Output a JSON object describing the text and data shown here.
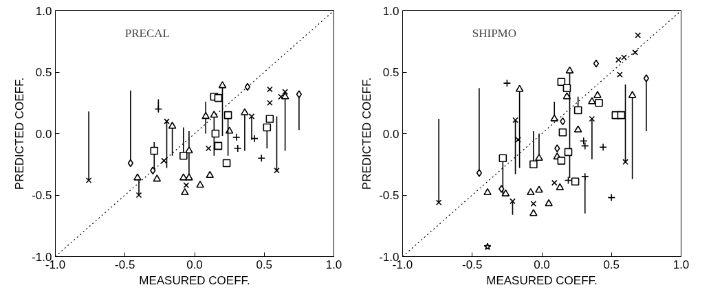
{
  "chart_data": [
    {
      "type": "scatter",
      "title": "PRECAL",
      "xlabel": "MEASURED COEFF.",
      "ylabel": "PREDICTED COEFF.",
      "xlim": [
        -1.0,
        1.0
      ],
      "ylim": [
        -1.0,
        1.0
      ],
      "xticks": [
        {
          "value": -1,
          "label": "-1.0"
        },
        {
          "value": -0.5,
          "label": "-0.5"
        },
        {
          "value": 0,
          "label": "0.0"
        },
        {
          "value": 0.5,
          "label": "0.5"
        },
        {
          "value": 1,
          "label": "1.0"
        }
      ],
      "yticks": [
        {
          "value": -1,
          "label": "-1.0"
        },
        {
          "value": -0.5,
          "label": "-0.5"
        },
        {
          "value": 0,
          "label": "0.0"
        },
        {
          "value": 0.5,
          "label": "0.5"
        },
        {
          "value": 1,
          "label": "1.0"
        }
      ],
      "grid": false,
      "series": [
        {
          "type": "line",
          "x": [
            -1,
            1
          ],
          "values": [
            -1,
            1
          ],
          "color": "#000000",
          "line_style": "dotted"
        },
        {
          "marker": "x",
          "color": "#000000",
          "x": [
            -0.76,
            -0.4,
            -0.22,
            -0.2,
            -0.06,
            0.1,
            0.41,
            0.54,
            0.54,
            0.59,
            0.65,
            0.62
          ],
          "values": [
            -0.38,
            -0.5,
            -0.22,
            0.1,
            -0.42,
            -0.12,
            0.14,
            0.36,
            0.25,
            -0.3,
            0.34,
            0.3
          ],
          "errors": [
            [
              -0.38,
              0.18
            ],
            [
              -0.5,
              -0.38
            ],
            null,
            [
              -0.28,
              0.1
            ],
            null,
            null,
            [
              -0.05,
              0.14
            ],
            null,
            null,
            [
              -0.3,
              0.14
            ],
            [
              -0.14,
              0.34
            ],
            null
          ]
        },
        {
          "marker": "triangle",
          "color": "#000000",
          "x": [
            -0.41,
            -0.16,
            0.2,
            0.14,
            0.36,
            0.65
          ],
          "values": [
            -0.36,
            0.06,
            0.39,
            0.15,
            0.17,
            0.3
          ],
          "errors": [
            null,
            [
              -0.18,
              0.06
            ],
            [
              -0.02,
              0.39
            ],
            [
              -0.18,
              0.15
            ],
            [
              -0.14,
              0.17
            ],
            null
          ]
        },
        {
          "marker": "triangle",
          "color": "#000000",
          "x": [
            -0.27,
            -0.08,
            -0.07,
            -0.04,
            -0.04,
            0.04,
            0.11,
            0.08,
            0.25
          ],
          "values": [
            -0.37,
            -0.36,
            -0.48,
            -0.14,
            -0.36,
            -0.42,
            -0.34,
            0.14,
            0.02
          ],
          "errors": [
            null,
            null,
            null,
            [
              -0.36,
              0.02
            ],
            null,
            null,
            null,
            [
              0.0,
              0.26
            ],
            null
          ]
        },
        {
          "marker": "square",
          "color": "#000000",
          "x": [
            -0.29,
            -0.08,
            0.14,
            0.17,
            0.15,
            0.17,
            0.24,
            0.23,
            0.52,
            0.54
          ],
          "values": [
            -0.14,
            -0.18,
            0.3,
            0.29,
            0.0,
            -0.1,
            0.15,
            -0.24,
            0.05,
            0.12
          ],
          "errors": [
            [
              -0.3,
              -0.07
            ],
            [
              -0.18,
              0.05
            ],
            null,
            null,
            null,
            null,
            [
              -0.18,
              0.15
            ],
            null,
            [
              -0.12,
              0.05
            ],
            null
          ]
        },
        {
          "marker": "diamond",
          "color": "#000000",
          "x": [
            -0.46,
            -0.3,
            0.38,
            0.75
          ],
          "values": [
            -0.24,
            -0.3,
            0.38,
            0.32
          ],
          "errors": [
            [
              -0.24,
              0.35
            ],
            null,
            null,
            [
              0.03,
              0.32
            ]
          ]
        },
        {
          "marker": "cross",
          "color": "#000000",
          "x": [
            -0.26,
            0.3,
            0.31,
            0.43,
            0.48
          ],
          "values": [
            0.2,
            -0.03,
            -0.12,
            -0.04,
            -0.2
          ],
          "errors": [
            [
              0.2,
              0.28
            ],
            null,
            null,
            null,
            null
          ]
        }
      ]
    },
    {
      "type": "scatter",
      "title": "SHIPMO",
      "xlabel": "MEASURED COEFF.",
      "ylabel": "PREDICTED COEFF.",
      "xlim": [
        -1.0,
        1.0
      ],
      "ylim": [
        -1.0,
        1.0
      ],
      "xticks": [
        {
          "value": -1,
          "label": "-1.0"
        },
        {
          "value": -0.5,
          "label": "-0.5"
        },
        {
          "value": 0,
          "label": "0.0"
        },
        {
          "value": 0.5,
          "label": "0.5"
        },
        {
          "value": 1,
          "label": "1.0"
        }
      ],
      "yticks": [
        {
          "value": -1,
          "label": "-1.0"
        },
        {
          "value": -0.5,
          "label": "-0.5"
        },
        {
          "value": 0,
          "label": "0.0"
        },
        {
          "value": 0.5,
          "label": "0.5"
        },
        {
          "value": 1,
          "label": "1.0"
        }
      ],
      "grid": false,
      "series": [
        {
          "type": "line",
          "x": [
            -1,
            1
          ],
          "values": [
            -1,
            1
          ],
          "color": "#000000",
          "line_style": "dotted"
        },
        {
          "marker": "x",
          "color": "#000000",
          "x": [
            -0.74,
            -0.21,
            -0.19,
            -0.17,
            -0.06,
            0.09,
            0.36,
            0.56,
            0.55,
            0.59,
            0.67,
            0.69,
            0.6
          ],
          "values": [
            -0.56,
            -0.55,
            0.11,
            -0.05,
            -0.57,
            -0.4,
            0.12,
            0.48,
            0.6,
            0.62,
            0.66,
            0.8,
            -0.23
          ],
          "errors": [
            [
              -0.56,
              0.12
            ],
            [
              -0.66,
              -0.55
            ],
            [
              -0.33,
              0.11
            ],
            null,
            null,
            null,
            [
              -0.21,
              0.12
            ],
            null,
            null,
            null,
            null,
            null,
            [
              -0.23,
              0.4
            ]
          ]
        },
        {
          "marker": "star",
          "color": "#000000",
          "x": [
            -0.39
          ],
          "values": [
            -0.92
          ]
        },
        {
          "marker": "triangle",
          "color": "#000000",
          "x": [
            -0.39,
            -0.16,
            0.11,
            0.2,
            0.4,
            0.65
          ],
          "values": [
            -0.48,
            0.36,
            -0.19,
            0.51,
            0.31,
            0.31
          ],
          "errors": [
            null,
            [
              -0.28,
              0.36
            ],
            null,
            [
              -0.36,
              0.51
            ],
            null,
            [
              -0.37,
              0.31
            ]
          ]
        },
        {
          "marker": "triangle",
          "color": "#000000",
          "x": [
            -0.26,
            -0.02,
            -0.08,
            -0.02,
            -0.06,
            0.05,
            0.13,
            0.09,
            0.18,
            0.26,
            0.36
          ],
          "values": [
            -0.49,
            -0.2,
            -0.48,
            -0.46,
            -0.65,
            -0.57,
            -0.44,
            0.12,
            0.3,
            0.03,
            0.26
          ],
          "errors": [
            null,
            [
              -0.2,
              0.0
            ],
            null,
            null,
            null,
            null,
            null,
            [
              0.12,
              0.26
            ],
            null,
            null,
            null
          ]
        },
        {
          "marker": "square",
          "color": "#000000",
          "x": [
            -0.28,
            -0.06,
            0.14,
            0.18,
            0.15,
            0.19,
            0.14,
            0.24,
            0.26,
            0.41,
            0.53,
            0.57
          ],
          "values": [
            -0.2,
            -0.25,
            0.42,
            0.37,
            0.01,
            -0.15,
            -0.22,
            -0.39,
            0.19,
            0.25,
            0.15,
            0.15
          ],
          "errors": [
            [
              -0.5,
              -0.2
            ],
            [
              -0.25,
              0.02
            ],
            null,
            null,
            null,
            null,
            null,
            null,
            [
              0.19,
              0.3
            ],
            null,
            null,
            null
          ]
        },
        {
          "marker": "diamond",
          "color": "#000000",
          "x": [
            -0.45,
            -0.29,
            0.11,
            0.15,
            0.39,
            0.75
          ],
          "values": [
            -0.32,
            -0.45,
            -0.12,
            0.1,
            0.57,
            0.45
          ],
          "errors": [
            [
              -0.32,
              0.37
            ],
            null,
            null,
            null,
            null,
            [
              0.02,
              0.45
            ]
          ]
        },
        {
          "marker": "cross",
          "color": "#000000",
          "x": [
            -0.25,
            0.19,
            0.3,
            0.31,
            0.31,
            0.44,
            0.5
          ],
          "values": [
            0.41,
            -0.38,
            -0.06,
            -0.1,
            -0.35,
            -0.11,
            -0.52
          ],
          "errors": [
            null,
            null,
            null,
            null,
            [
              -0.65,
              -0.35
            ],
            null,
            null
          ]
        }
      ]
    }
  ]
}
